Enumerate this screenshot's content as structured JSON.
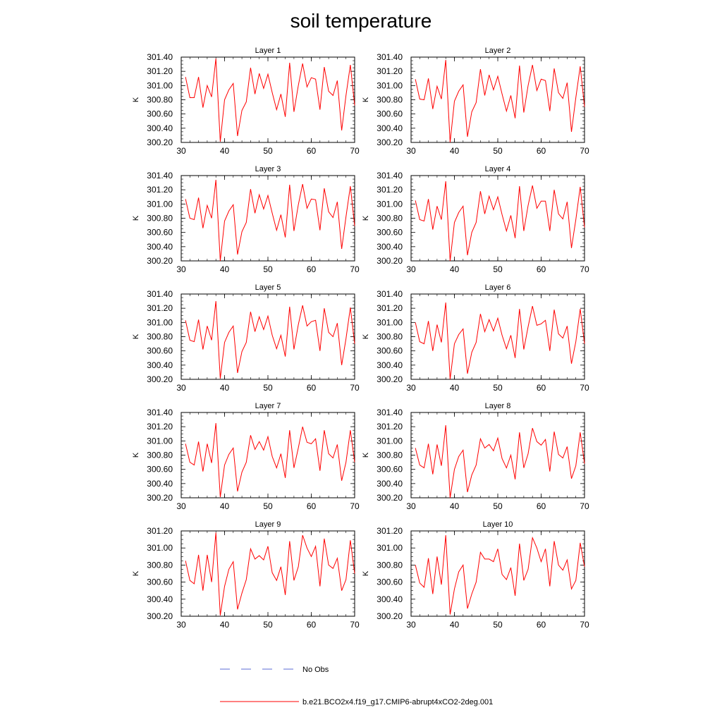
{
  "page_title": "soil temperature",
  "colors": {
    "model_line": "#ff0000",
    "obs_line": "#5b6bd6",
    "axis": "#000000"
  },
  "legend": {
    "obs_label": "No Obs",
    "model_label": "b.e21.BCO2x4.f19_g17.CMIP6-abrupt4xCO2-2deg.001"
  },
  "chart_data": [
    {
      "type": "line",
      "title": "Layer 1",
      "xlabel": "",
      "ylabel": "K",
      "xlim": [
        30,
        70
      ],
      "ylim": [
        300.2,
        301.4
      ],
      "xticks": [
        30,
        40,
        50,
        60,
        70
      ],
      "yticks": [
        300.2,
        300.4,
        300.6,
        300.8,
        301.0,
        301.2,
        301.4
      ],
      "x": [
        31,
        32,
        33,
        34,
        35,
        36,
        37,
        38,
        39,
        40,
        41,
        42,
        43,
        44,
        45,
        46,
        47,
        48,
        49,
        50,
        51,
        52,
        53,
        54,
        55,
        56,
        57,
        58,
        59,
        60,
        61,
        62,
        63,
        64,
        65,
        66,
        67,
        68,
        69,
        70
      ],
      "series": [
        {
          "values": [
            301.12,
            300.83,
            300.83,
            301.12,
            300.69,
            301.0,
            300.84,
            301.38,
            300.21,
            300.8,
            300.94,
            301.03,
            300.29,
            300.65,
            300.77,
            301.25,
            300.88,
            301.17,
            300.96,
            301.16,
            300.9,
            300.66,
            300.88,
            300.56,
            301.32,
            300.63,
            301.0,
            301.31,
            300.98,
            301.11,
            301.09,
            300.66,
            301.26,
            300.92,
            300.86,
            301.07,
            300.37,
            300.86,
            301.29,
            300.72
          ]
        }
      ]
    },
    {
      "type": "line",
      "title": "Layer 2",
      "xlabel": "",
      "ylabel": "K",
      "xlim": [
        30,
        70
      ],
      "ylim": [
        300.2,
        301.4
      ],
      "xticks": [
        30,
        40,
        50,
        60,
        70
      ],
      "yticks": [
        300.2,
        300.4,
        300.6,
        300.8,
        301.0,
        301.2,
        301.4
      ],
      "x": [
        31,
        32,
        33,
        34,
        35,
        36,
        37,
        38,
        39,
        40,
        41,
        42,
        43,
        44,
        45,
        46,
        47,
        48,
        49,
        50,
        51,
        52,
        53,
        54,
        55,
        56,
        57,
        58,
        59,
        60,
        61,
        62,
        63,
        64,
        65,
        66,
        67,
        68,
        69,
        70
      ],
      "series": [
        {
          "values": [
            301.09,
            300.81,
            300.8,
            301.1,
            300.67,
            300.99,
            300.81,
            301.36,
            300.2,
            300.78,
            300.92,
            301.01,
            300.28,
            300.63,
            300.76,
            301.23,
            300.86,
            301.15,
            300.94,
            301.13,
            300.88,
            300.64,
            300.86,
            300.54,
            301.28,
            300.62,
            301.0,
            301.29,
            300.93,
            301.09,
            301.07,
            300.64,
            301.24,
            300.9,
            300.82,
            301.04,
            300.35,
            300.83,
            301.27,
            300.7
          ]
        }
      ]
    },
    {
      "type": "line",
      "title": "Layer 3",
      "xlabel": "",
      "ylabel": "K",
      "xlim": [
        30,
        70
      ],
      "ylim": [
        300.2,
        301.4
      ],
      "xticks": [
        30,
        40,
        50,
        60,
        70
      ],
      "yticks": [
        300.2,
        300.4,
        300.6,
        300.8,
        301.0,
        301.2,
        301.4
      ],
      "x": [
        31,
        32,
        33,
        34,
        35,
        36,
        37,
        38,
        39,
        40,
        41,
        42,
        43,
        44,
        45,
        46,
        47,
        48,
        49,
        50,
        51,
        52,
        53,
        54,
        55,
        56,
        57,
        58,
        59,
        60,
        61,
        62,
        63,
        64,
        65,
        66,
        67,
        68,
        69,
        70
      ],
      "series": [
        {
          "values": [
            301.07,
            300.8,
            300.78,
            301.09,
            300.66,
            300.98,
            300.8,
            301.34,
            300.2,
            300.76,
            300.9,
            300.99,
            300.29,
            300.61,
            300.74,
            301.21,
            300.87,
            301.13,
            300.93,
            301.12,
            300.87,
            300.63,
            300.85,
            300.53,
            301.27,
            300.62,
            300.99,
            301.28,
            300.94,
            301.07,
            301.06,
            300.63,
            301.22,
            300.89,
            300.81,
            301.03,
            300.37,
            300.82,
            301.25,
            300.69
          ]
        }
      ]
    },
    {
      "type": "line",
      "title": "Layer 4",
      "xlabel": "",
      "ylabel": "K",
      "xlim": [
        30,
        70
      ],
      "ylim": [
        300.2,
        301.4
      ],
      "xticks": [
        30,
        40,
        50,
        60,
        70
      ],
      "yticks": [
        300.2,
        300.4,
        300.6,
        300.8,
        301.0,
        301.2,
        301.4
      ],
      "x": [
        31,
        32,
        33,
        34,
        35,
        36,
        37,
        38,
        39,
        40,
        41,
        42,
        43,
        44,
        45,
        46,
        47,
        48,
        49,
        50,
        51,
        52,
        53,
        54,
        55,
        56,
        57,
        58,
        59,
        60,
        61,
        62,
        63,
        64,
        65,
        66,
        67,
        68,
        69,
        70
      ],
      "series": [
        {
          "values": [
            301.05,
            300.78,
            300.76,
            301.07,
            300.64,
            300.97,
            300.78,
            301.32,
            300.2,
            300.74,
            300.88,
            300.97,
            300.28,
            300.6,
            300.74,
            301.18,
            300.86,
            301.11,
            300.92,
            301.1,
            300.85,
            300.62,
            300.84,
            300.52,
            301.25,
            300.62,
            300.98,
            301.26,
            300.94,
            301.04,
            301.04,
            300.62,
            301.2,
            300.86,
            300.79,
            301.03,
            300.38,
            300.78,
            301.24,
            300.67
          ]
        }
      ]
    },
    {
      "type": "line",
      "title": "Layer 5",
      "xlabel": "",
      "ylabel": "K",
      "xlim": [
        30,
        70
      ],
      "ylim": [
        300.2,
        301.4
      ],
      "xticks": [
        30,
        40,
        50,
        60,
        70
      ],
      "yticks": [
        300.2,
        300.4,
        300.6,
        300.8,
        301.0,
        301.2,
        301.4
      ],
      "x": [
        31,
        32,
        33,
        34,
        35,
        36,
        37,
        38,
        39,
        40,
        41,
        42,
        43,
        44,
        45,
        46,
        47,
        48,
        49,
        50,
        51,
        52,
        53,
        54,
        55,
        56,
        57,
        58,
        59,
        60,
        61,
        62,
        63,
        64,
        65,
        66,
        67,
        68,
        69,
        70
      ],
      "series": [
        {
          "values": [
            301.03,
            300.75,
            300.73,
            301.04,
            300.62,
            300.95,
            300.75,
            301.3,
            300.21,
            300.72,
            300.86,
            300.95,
            300.29,
            300.59,
            300.72,
            301.15,
            300.87,
            301.08,
            300.9,
            301.09,
            300.82,
            300.63,
            300.82,
            300.52,
            301.22,
            300.62,
            300.97,
            301.24,
            300.95,
            301.01,
            301.03,
            300.6,
            301.2,
            300.86,
            300.8,
            300.99,
            300.4,
            300.77,
            301.21,
            300.7
          ]
        }
      ]
    },
    {
      "type": "line",
      "title": "Layer 6",
      "xlabel": "",
      "ylabel": "K",
      "xlim": [
        30,
        70
      ],
      "ylim": [
        300.2,
        301.4
      ],
      "xticks": [
        30,
        40,
        50,
        60,
        70
      ],
      "yticks": [
        300.2,
        300.4,
        300.6,
        300.8,
        301.0,
        301.2,
        301.4
      ],
      "x": [
        31,
        32,
        33,
        34,
        35,
        36,
        37,
        38,
        39,
        40,
        41,
        42,
        43,
        44,
        45,
        46,
        47,
        48,
        49,
        50,
        51,
        52,
        53,
        54,
        55,
        56,
        57,
        58,
        59,
        60,
        61,
        62,
        63,
        64,
        65,
        66,
        67,
        68,
        69,
        70
      ],
      "series": [
        {
          "values": [
            301.0,
            300.73,
            300.7,
            301.02,
            300.6,
            300.97,
            300.72,
            301.28,
            300.2,
            300.7,
            300.83,
            300.91,
            300.28,
            300.58,
            300.72,
            301.12,
            300.87,
            301.04,
            300.88,
            301.06,
            300.82,
            300.63,
            300.82,
            300.5,
            301.19,
            300.62,
            300.94,
            301.23,
            300.96,
            300.98,
            301.03,
            300.6,
            301.18,
            300.84,
            300.78,
            300.95,
            300.42,
            300.73,
            301.19,
            300.7
          ]
        }
      ]
    },
    {
      "type": "line",
      "title": "Layer 7",
      "xlabel": "",
      "ylabel": "K",
      "xlim": [
        30,
        70
      ],
      "ylim": [
        300.2,
        301.4
      ],
      "xticks": [
        30,
        40,
        50,
        60,
        70
      ],
      "yticks": [
        300.2,
        300.4,
        300.6,
        300.8,
        301.0,
        301.2,
        301.4
      ],
      "x": [
        31,
        32,
        33,
        34,
        35,
        36,
        37,
        38,
        39,
        40,
        41,
        42,
        43,
        44,
        45,
        46,
        47,
        48,
        49,
        50,
        51,
        52,
        53,
        54,
        55,
        56,
        57,
        58,
        59,
        60,
        61,
        62,
        63,
        64,
        65,
        66,
        67,
        68,
        69,
        70
      ],
      "series": [
        {
          "values": [
            300.96,
            300.7,
            300.66,
            300.99,
            300.57,
            300.96,
            300.69,
            301.25,
            300.21,
            300.66,
            300.81,
            300.9,
            300.29,
            300.56,
            300.7,
            301.08,
            300.88,
            300.99,
            300.87,
            301.06,
            300.78,
            300.62,
            300.82,
            300.48,
            301.15,
            300.62,
            300.9,
            301.2,
            300.98,
            300.96,
            301.03,
            300.58,
            301.15,
            300.82,
            300.76,
            300.95,
            300.44,
            300.7,
            301.15,
            300.7
          ]
        }
      ]
    },
    {
      "type": "line",
      "title": "Layer 8",
      "xlabel": "",
      "ylabel": "K",
      "xlim": [
        30,
        70
      ],
      "ylim": [
        300.2,
        301.4
      ],
      "xticks": [
        30,
        40,
        50,
        60,
        70
      ],
      "yticks": [
        300.2,
        300.4,
        300.6,
        300.8,
        301.0,
        301.2,
        301.4
      ],
      "x": [
        31,
        32,
        33,
        34,
        35,
        36,
        37,
        38,
        39,
        40,
        41,
        42,
        43,
        44,
        45,
        46,
        47,
        48,
        49,
        50,
        51,
        52,
        53,
        54,
        55,
        56,
        57,
        58,
        59,
        60,
        61,
        62,
        63,
        64,
        65,
        66,
        67,
        68,
        69,
        70
      ],
      "series": [
        {
          "values": [
            300.9,
            300.66,
            300.62,
            300.96,
            300.53,
            300.95,
            300.65,
            301.22,
            300.2,
            300.6,
            300.78,
            300.87,
            300.28,
            300.52,
            300.66,
            301.03,
            300.9,
            300.95,
            300.86,
            301.04,
            300.75,
            300.62,
            300.8,
            300.46,
            301.12,
            300.62,
            300.82,
            301.18,
            300.99,
            300.94,
            301.02,
            300.57,
            301.13,
            300.81,
            300.76,
            300.92,
            300.47,
            300.65,
            301.12,
            300.68
          ]
        }
      ]
    },
    {
      "type": "line",
      "title": "Layer 9",
      "xlabel": "",
      "ylabel": "K",
      "xlim": [
        30,
        70
      ],
      "ylim": [
        300.2,
        301.2
      ],
      "xticks": [
        30,
        40,
        50,
        60,
        70
      ],
      "yticks": [
        300.2,
        300.4,
        300.6,
        300.8,
        301.0,
        301.2
      ],
      "x": [
        31,
        32,
        33,
        34,
        35,
        36,
        37,
        38,
        39,
        40,
        41,
        42,
        43,
        44,
        45,
        46,
        47,
        48,
        49,
        50,
        51,
        52,
        53,
        54,
        55,
        56,
        57,
        58,
        59,
        60,
        61,
        62,
        63,
        64,
        65,
        66,
        67,
        68,
        69,
        70
      ],
      "series": [
        {
          "values": [
            300.85,
            300.62,
            300.58,
            300.92,
            300.5,
            300.92,
            300.6,
            301.18,
            300.21,
            300.55,
            300.75,
            300.84,
            300.28,
            300.47,
            300.63,
            300.99,
            300.87,
            300.91,
            300.86,
            301.02,
            300.71,
            300.62,
            300.78,
            300.45,
            301.08,
            300.62,
            300.78,
            301.15,
            301.0,
            300.9,
            301.02,
            300.55,
            301.11,
            300.8,
            300.76,
            300.88,
            300.5,
            300.63,
            301.09,
            300.7
          ]
        }
      ]
    },
    {
      "type": "line",
      "title": "Layer 10",
      "xlabel": "",
      "ylabel": "K",
      "xlim": [
        30,
        70
      ],
      "ylim": [
        300.2,
        301.2
      ],
      "xticks": [
        30,
        40,
        50,
        60,
        70
      ],
      "yticks": [
        300.2,
        300.4,
        300.6,
        300.8,
        301.0,
        301.2
      ],
      "x": [
        31,
        32,
        33,
        34,
        35,
        36,
        37,
        38,
        39,
        40,
        41,
        42,
        43,
        44,
        45,
        46,
        47,
        48,
        49,
        50,
        51,
        52,
        53,
        54,
        55,
        56,
        57,
        58,
        59,
        60,
        61,
        62,
        63,
        64,
        65,
        66,
        67,
        68,
        69,
        70
      ],
      "series": [
        {
          "values": [
            300.8,
            300.59,
            300.54,
            300.88,
            300.46,
            300.9,
            300.57,
            301.15,
            300.22,
            300.52,
            300.72,
            300.8,
            300.29,
            300.46,
            300.6,
            300.95,
            300.87,
            300.87,
            300.84,
            300.99,
            300.69,
            300.63,
            300.77,
            300.44,
            301.05,
            300.62,
            300.75,
            301.12,
            301.0,
            300.84,
            300.99,
            300.55,
            301.08,
            300.8,
            300.74,
            300.86,
            300.52,
            300.62,
            301.06,
            300.78
          ]
        }
      ]
    }
  ]
}
